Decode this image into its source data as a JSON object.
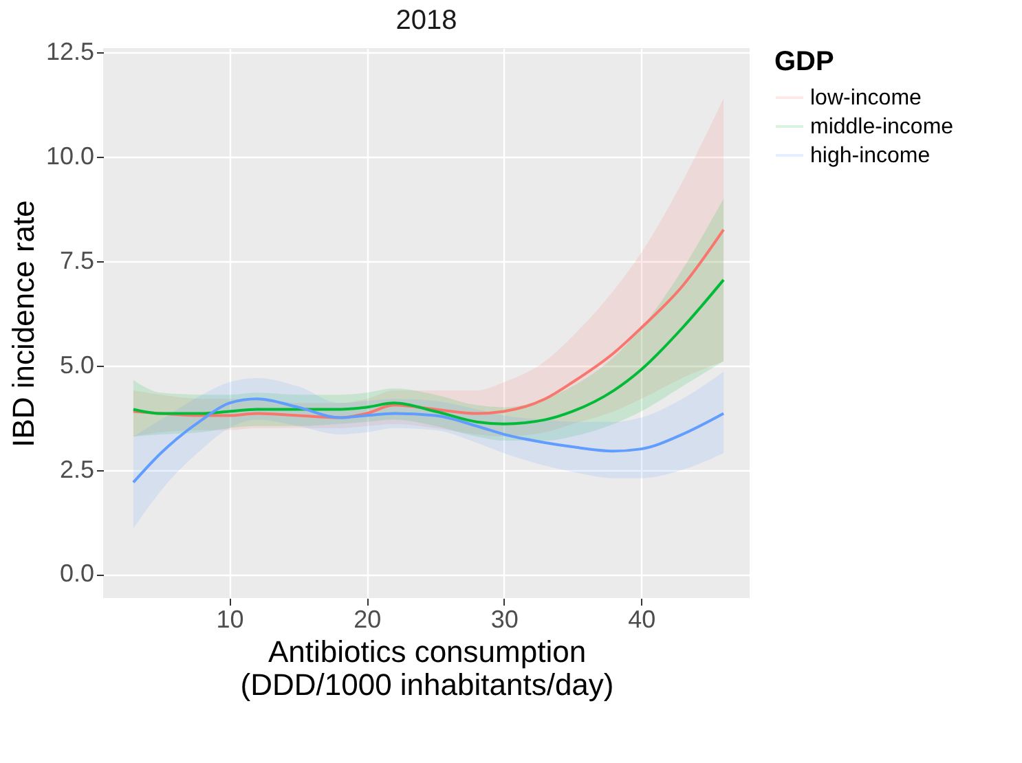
{
  "chart_data": {
    "type": "line",
    "title": "2018",
    "xlabel": "Antibiotics consumption\n(DDD/1000 inhabitants/day)",
    "ylabel": "IBD incidence rate",
    "legend_title": "GDP",
    "legend": "right",
    "grid": true,
    "line_style": "solid",
    "marker": "none",
    "x": [
      3,
      5,
      8,
      10,
      12,
      15,
      18,
      20,
      22,
      25,
      28,
      30,
      33,
      35,
      38,
      40,
      43,
      46
    ],
    "xlim": [
      0.8,
      47.9
    ],
    "xticks": [
      10,
      20,
      30,
      40
    ],
    "ylim": [
      -0.57,
      12.6
    ],
    "yticks": [
      {
        "value": 0,
        "label": "0.0"
      },
      {
        "value": 2.5,
        "label": "2.5"
      },
      {
        "value": 5,
        "label": "5.0"
      },
      {
        "value": 7.5,
        "label": "7.5"
      },
      {
        "value": 10,
        "label": "10.0"
      },
      {
        "value": 12.5,
        "label": "12.5"
      }
    ],
    "series": [
      {
        "name": "low-income",
        "color": "#f8766d",
        "values": [
          3.9,
          3.85,
          3.8,
          3.8,
          3.85,
          3.8,
          3.75,
          3.85,
          4.05,
          3.95,
          3.85,
          3.9,
          4.2,
          4.6,
          5.3,
          5.9,
          6.9,
          8.25
        ],
        "lower": [
          3.3,
          3.4,
          3.45,
          3.45,
          3.5,
          3.5,
          3.5,
          3.55,
          3.6,
          3.5,
          3.35,
          3.3,
          3.4,
          3.6,
          3.9,
          4.2,
          4.7,
          5.1
        ],
        "upper": [
          4.4,
          4.3,
          4.2,
          4.2,
          4.2,
          4.1,
          4.1,
          4.2,
          4.4,
          4.4,
          4.4,
          4.6,
          5.1,
          5.7,
          6.8,
          7.7,
          9.4,
          11.4
        ]
      },
      {
        "name": "middle-income",
        "color": "#00ba38",
        "values": [
          3.95,
          3.85,
          3.85,
          3.9,
          3.95,
          3.95,
          3.95,
          4.0,
          4.1,
          3.9,
          3.65,
          3.6,
          3.7,
          3.9,
          4.4,
          4.9,
          5.9,
          7.05
        ],
        "lower": [
          3.3,
          3.35,
          3.4,
          3.5,
          3.55,
          3.55,
          3.6,
          3.65,
          3.7,
          3.55,
          3.3,
          3.2,
          3.2,
          3.3,
          3.6,
          3.9,
          4.5,
          5.1
        ],
        "upper": [
          4.65,
          4.35,
          4.3,
          4.3,
          4.35,
          4.3,
          4.3,
          4.35,
          4.45,
          4.3,
          4.05,
          4.0,
          4.2,
          4.5,
          5.2,
          5.9,
          7.3,
          9.0
        ]
      },
      {
        "name": "high-income",
        "color": "#619cff",
        "values": [
          2.2,
          2.9,
          3.7,
          4.1,
          4.2,
          4.0,
          3.75,
          3.8,
          3.85,
          3.8,
          3.55,
          3.35,
          3.15,
          3.05,
          2.95,
          3.0,
          3.35,
          3.85
        ],
        "lower": [
          1.1,
          2.0,
          3.0,
          3.5,
          3.7,
          3.55,
          3.35,
          3.4,
          3.5,
          3.45,
          3.15,
          2.9,
          2.6,
          2.45,
          2.3,
          2.3,
          2.5,
          2.9
        ],
        "upper": [
          3.3,
          3.7,
          4.3,
          4.6,
          4.7,
          4.5,
          4.1,
          4.15,
          4.2,
          4.15,
          3.95,
          3.8,
          3.7,
          3.65,
          3.65,
          3.75,
          4.2,
          4.85
        ]
      }
    ]
  }
}
